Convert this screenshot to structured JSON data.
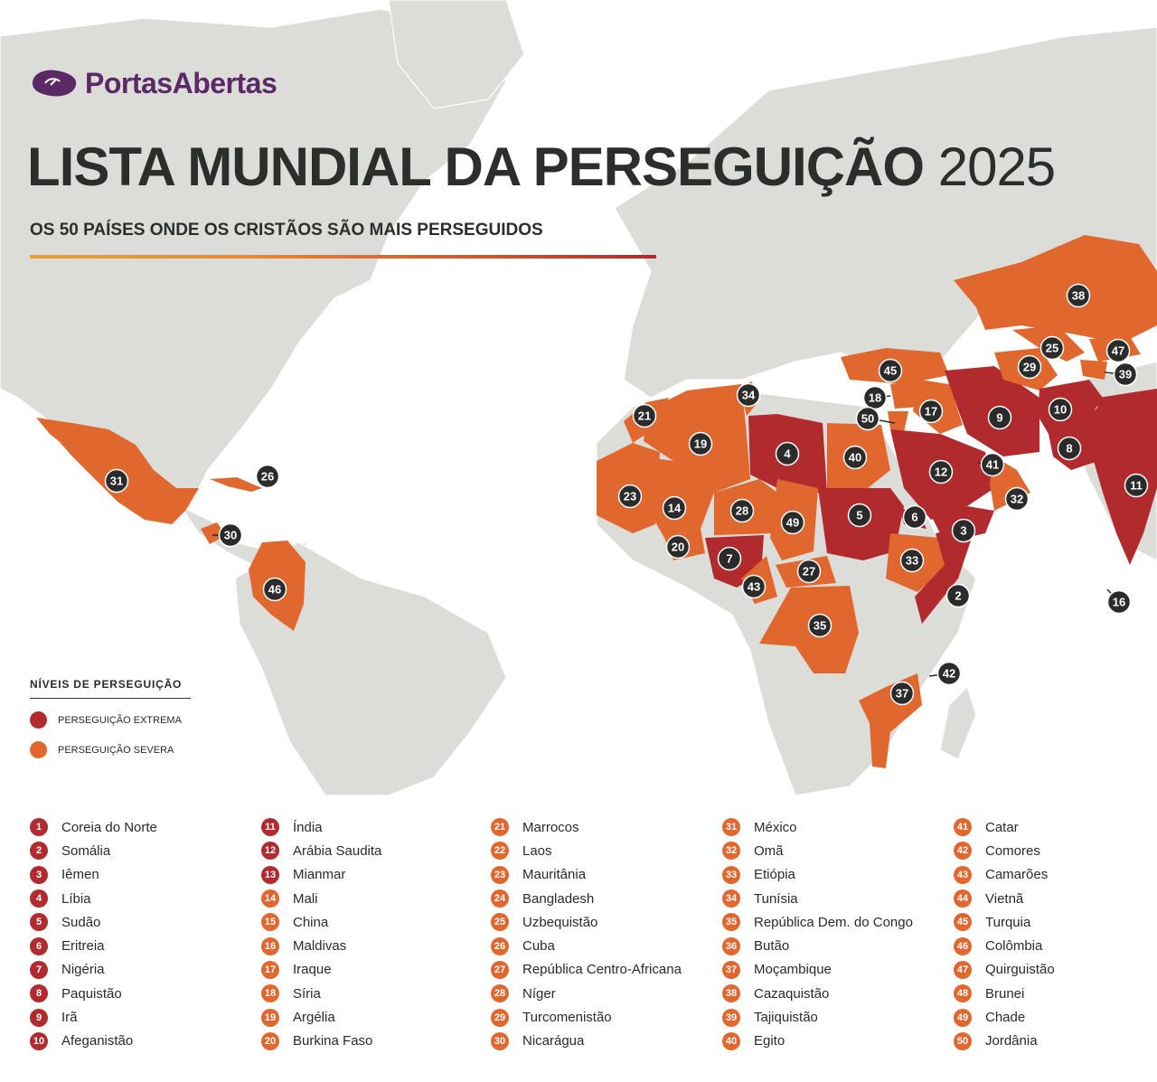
{
  "brand": {
    "name": "PortasAbertas"
  },
  "title": {
    "main": "LISTA MUNDIAL DA PERSEGUIÇÃO",
    "year": "2025"
  },
  "subtitle": "OS 50 PAÍSES ONDE OS CRISTÃOS SÃO MAIS PERSEGUIDOS",
  "legend": {
    "title": "NÍVEIS DE PERSEGUIÇÃO",
    "extreme": "PERSEGUIÇÃO EXTREMA",
    "severe": "PERSEGUIÇÃO SEVERA"
  },
  "colors": {
    "extreme": "#b12a2e",
    "severe": "#e0672e",
    "land": "#dcdcd8",
    "brand": "#5b2a66"
  },
  "countries": [
    {
      "rank": "1",
      "name": "Coreia do Norte",
      "level": "extreme"
    },
    {
      "rank": "2",
      "name": "Somália",
      "level": "extreme"
    },
    {
      "rank": "3",
      "name": "Iêmen",
      "level": "extreme"
    },
    {
      "rank": "4",
      "name": "Líbia",
      "level": "extreme"
    },
    {
      "rank": "5",
      "name": "Sudão",
      "level": "extreme"
    },
    {
      "rank": "6",
      "name": "Eritreia",
      "level": "extreme"
    },
    {
      "rank": "7",
      "name": "Nigéria",
      "level": "extreme"
    },
    {
      "rank": "8",
      "name": "Paquistão",
      "level": "extreme"
    },
    {
      "rank": "9",
      "name": "Irã",
      "level": "extreme"
    },
    {
      "rank": "10",
      "name": "Afeganistão",
      "level": "extreme"
    },
    {
      "rank": "11",
      "name": "Índia",
      "level": "extreme"
    },
    {
      "rank": "12",
      "name": "Arábia Saudita",
      "level": "extreme"
    },
    {
      "rank": "13",
      "name": "Mianmar",
      "level": "extreme"
    },
    {
      "rank": "14",
      "name": "Mali",
      "level": "severe"
    },
    {
      "rank": "15",
      "name": "China",
      "level": "severe"
    },
    {
      "rank": "16",
      "name": "Maldivas",
      "level": "severe"
    },
    {
      "rank": "17",
      "name": "Iraque",
      "level": "severe"
    },
    {
      "rank": "18",
      "name": "Síria",
      "level": "severe"
    },
    {
      "rank": "19",
      "name": "Argélia",
      "level": "severe"
    },
    {
      "rank": "20",
      "name": "Burkina Faso",
      "level": "severe"
    },
    {
      "rank": "21",
      "name": "Marrocos",
      "level": "severe"
    },
    {
      "rank": "22",
      "name": "Laos",
      "level": "severe"
    },
    {
      "rank": "23",
      "name": "Mauritânia",
      "level": "severe"
    },
    {
      "rank": "24",
      "name": "Bangladesh",
      "level": "severe"
    },
    {
      "rank": "25",
      "name": "Uzbequistão",
      "level": "severe"
    },
    {
      "rank": "26",
      "name": "Cuba",
      "level": "severe"
    },
    {
      "rank": "27",
      "name": "República Centro-Africana",
      "level": "severe"
    },
    {
      "rank": "28",
      "name": "Níger",
      "level": "severe"
    },
    {
      "rank": "29",
      "name": "Turcomenistão",
      "level": "severe"
    },
    {
      "rank": "30",
      "name": "Nicarágua",
      "level": "severe"
    },
    {
      "rank": "31",
      "name": "México",
      "level": "severe"
    },
    {
      "rank": "32",
      "name": "Omã",
      "level": "severe"
    },
    {
      "rank": "33",
      "name": "Etiópia",
      "level": "severe"
    },
    {
      "rank": "34",
      "name": "Tunísia",
      "level": "severe"
    },
    {
      "rank": "35",
      "name": "República Dem. do Congo",
      "level": "severe"
    },
    {
      "rank": "36",
      "name": "Butão",
      "level": "severe"
    },
    {
      "rank": "37",
      "name": "Moçambique",
      "level": "severe"
    },
    {
      "rank": "38",
      "name": "Cazaquistão",
      "level": "severe"
    },
    {
      "rank": "39",
      "name": "Tajiquistão",
      "level": "severe"
    },
    {
      "rank": "40",
      "name": "Egito",
      "level": "severe"
    },
    {
      "rank": "41",
      "name": "Catar",
      "level": "severe"
    },
    {
      "rank": "42",
      "name": "Comores",
      "level": "severe"
    },
    {
      "rank": "43",
      "name": "Camarões",
      "level": "severe"
    },
    {
      "rank": "44",
      "name": "Vietnã",
      "level": "severe"
    },
    {
      "rank": "45",
      "name": "Turquia",
      "level": "severe"
    },
    {
      "rank": "46",
      "name": "Colômbia",
      "level": "severe"
    },
    {
      "rank": "47",
      "name": "Quirguistão",
      "level": "severe"
    },
    {
      "rank": "48",
      "name": "Brunei",
      "level": "severe"
    },
    {
      "rank": "49",
      "name": "Chade",
      "level": "severe"
    },
    {
      "rank": "50",
      "name": "Jordânia",
      "level": "severe"
    }
  ]
}
